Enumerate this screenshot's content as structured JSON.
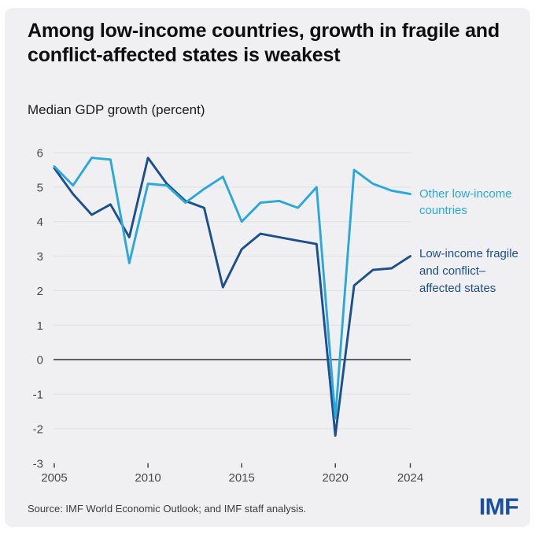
{
  "header": {
    "title": "Among low-income countries, growth in fragile and conflict-affected states is weakest",
    "subtitle": "Median GDP growth (percent)"
  },
  "footer": {
    "source": "Source: IMF World Economic Outlook; and IMF staff analysis.",
    "logo": "IMF"
  },
  "colors": {
    "background": "#f0f0f2",
    "other": "#29a8dc",
    "fragile": "#1c4f8e",
    "gridline": "#e0e0e4",
    "zero_line": "#3a3a3e",
    "tick": "#45454a",
    "axis_text": "#48484c",
    "logo_blue": "#1a4f9c"
  },
  "chart_data": {
    "type": "line",
    "title": "Median GDP growth (percent)",
    "x": [
      2005,
      2006,
      2007,
      2008,
      2009,
      2010,
      2011,
      2012,
      2013,
      2014,
      2015,
      2016,
      2017,
      2018,
      2019,
      2020,
      2021,
      2022,
      2023,
      2024
    ],
    "series": [
      {
        "name": "Other low-income countries",
        "color_key": "other",
        "values": [
          5.6,
          5.05,
          5.85,
          5.8,
          2.8,
          5.1,
          5.05,
          4.55,
          4.95,
          5.3,
          4.0,
          4.55,
          4.6,
          4.4,
          5.0,
          -1.7,
          5.5,
          5.1,
          4.9,
          4.8
        ]
      },
      {
        "name": "Low-income fragile and conflict–affected states",
        "color_key": "fragile",
        "values": [
          5.55,
          4.8,
          4.2,
          4.5,
          3.55,
          5.85,
          5.1,
          4.6,
          4.4,
          2.1,
          3.2,
          3.65,
          3.55,
          3.45,
          3.35,
          -2.2,
          2.15,
          2.6,
          2.65,
          3.0
        ]
      }
    ],
    "xlabel": "",
    "ylabel": "",
    "ylim": [
      -3,
      6
    ],
    "yticks": [
      6,
      5,
      4,
      3,
      2,
      1,
      0,
      -1,
      -2,
      -3
    ],
    "xticks": [
      2005,
      2010,
      2015,
      2020,
      2024
    ],
    "grid": "horizontal",
    "legend_position": "right"
  }
}
